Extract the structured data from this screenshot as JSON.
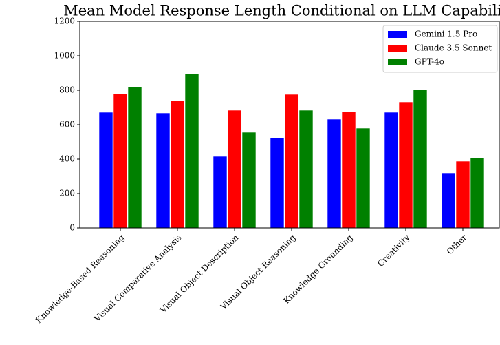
{
  "chart_data": {
    "type": "bar",
    "title": "Mean Model Response Length Conditional on LLM Capability",
    "categories": [
      "Knowledge-Based Reasoning",
      "Visual Comparative Analysis",
      "Visual Object Description",
      "Visual Object Reasoning",
      "Knowledge Grounding",
      "Creativity",
      "Other"
    ],
    "series": [
      {
        "name": "Gemini 1.5 Pro",
        "color": "#0000ff",
        "values": [
          672,
          668,
          416,
          524,
          632,
          672,
          320
        ]
      },
      {
        "name": "Claude 3.5 Sonnet",
        "color": "#ff0000",
        "values": [
          780,
          740,
          684,
          776,
          676,
          732,
          388
        ]
      },
      {
        "name": "GPT-4o",
        "color": "#008000",
        "values": [
          820,
          896,
          556,
          684,
          580,
          804,
          408
        ]
      }
    ],
    "ylim": [
      0,
      1200
    ],
    "yticks": [
      0,
      200,
      400,
      600,
      800,
      1000,
      1200
    ],
    "grid": false,
    "legend": "upper right"
  }
}
